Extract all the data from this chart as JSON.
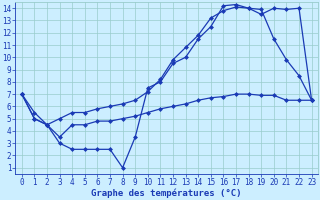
{
  "xlabel": "Graphe des températures (°C)",
  "xlim": [
    -0.5,
    23.5
  ],
  "ylim": [
    0.5,
    14.5
  ],
  "xticks": [
    0,
    1,
    2,
    3,
    4,
    5,
    6,
    7,
    8,
    9,
    10,
    11,
    12,
    13,
    14,
    15,
    16,
    17,
    18,
    19,
    20,
    21,
    22,
    23
  ],
  "yticks": [
    1,
    2,
    3,
    4,
    5,
    6,
    7,
    8,
    9,
    10,
    11,
    12,
    13,
    14
  ],
  "bg_color": "#cceeff",
  "line_color": "#1a3ab5",
  "grid_color": "#99cccc",
  "line1_x": [
    0,
    1,
    2,
    3,
    4,
    5,
    6,
    7,
    8,
    9,
    10,
    11,
    12,
    13,
    14,
    15,
    16,
    17,
    18,
    19,
    20,
    21,
    22,
    23
  ],
  "line1_y": [
    7.0,
    5.0,
    4.5,
    3.0,
    2.5,
    2.5,
    2.5,
    2.5,
    1.0,
    3.5,
    7.5,
    8.0,
    9.5,
    10.0,
    11.5,
    12.5,
    14.2,
    14.3,
    14.0,
    13.9,
    11.5,
    9.8,
    8.5,
    6.5
  ],
  "line2_x": [
    0,
    1,
    2,
    3,
    4,
    5,
    6,
    7,
    8,
    9,
    10,
    11,
    12,
    13,
    14,
    15,
    16,
    17,
    18,
    19,
    20,
    21,
    22,
    23
  ],
  "line2_y": [
    7.0,
    5.5,
    4.5,
    5.0,
    5.5,
    5.5,
    5.8,
    6.0,
    6.2,
    6.5,
    7.2,
    8.2,
    9.8,
    10.8,
    11.8,
    13.2,
    13.8,
    14.1,
    14.0,
    13.5,
    14.0,
    13.9,
    14.0,
    6.5
  ],
  "line3_x": [
    0,
    1,
    2,
    3,
    4,
    5,
    6,
    7,
    8,
    9,
    10,
    11,
    12,
    13,
    14,
    15,
    16,
    17,
    18,
    19,
    20,
    21,
    22,
    23
  ],
  "line3_y": [
    7.0,
    5.0,
    4.5,
    3.5,
    4.5,
    4.5,
    4.8,
    4.8,
    5.0,
    5.2,
    5.5,
    5.8,
    6.0,
    6.2,
    6.5,
    6.7,
    6.8,
    7.0,
    7.0,
    6.9,
    6.9,
    6.5,
    6.5,
    6.5
  ],
  "tick_fontsize": 5.5,
  "xlabel_fontsize": 6.5,
  "marker_size": 2.5,
  "line_width": 0.9
}
